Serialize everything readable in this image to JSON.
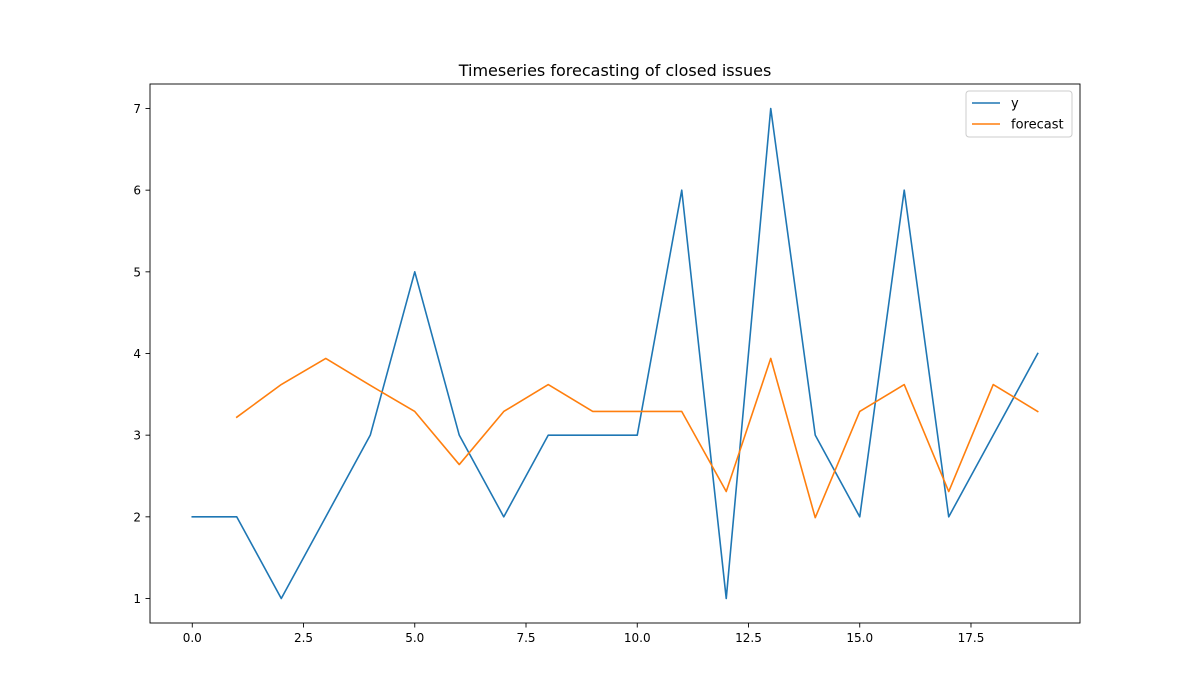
{
  "chart_data": {
    "type": "line",
    "title": "Timeseries forecasting of closed issues",
    "xlabel": "",
    "ylabel": "",
    "xlim": [
      -0.95,
      19.95
    ],
    "ylim": [
      0.7,
      7.3
    ],
    "xticks": [
      0.0,
      2.5,
      5.0,
      7.5,
      10.0,
      12.5,
      15.0,
      17.5
    ],
    "xtick_labels": [
      "0.0",
      "2.5",
      "5.0",
      "7.5",
      "10.0",
      "12.5",
      "15.0",
      "17.5"
    ],
    "yticks": [
      1,
      2,
      3,
      4,
      5,
      6,
      7
    ],
    "ytick_labels": [
      "1",
      "2",
      "3",
      "4",
      "5",
      "6",
      "7"
    ],
    "grid": false,
    "legend_position": "top-right",
    "series": [
      {
        "name": "y",
        "color": "#1f77b4",
        "x": [
          0,
          1,
          2,
          3,
          4,
          5,
          6,
          7,
          8,
          9,
          10,
          11,
          12,
          13,
          14,
          15,
          16,
          17,
          18,
          19
        ],
        "values": [
          2,
          2,
          1,
          2,
          3,
          5,
          3,
          2,
          3,
          3,
          3,
          6,
          1,
          7,
          3,
          2,
          6,
          2,
          3,
          4
        ]
      },
      {
        "name": "forecast",
        "color": "#ff7f0e",
        "x": [
          1,
          2,
          3,
          4,
          5,
          6,
          7,
          8,
          9,
          10,
          11,
          12,
          13,
          14,
          15,
          16,
          17,
          18,
          19
        ],
        "values": [
          3.22,
          3.62,
          3.94,
          3.61,
          3.29,
          2.64,
          3.29,
          3.62,
          3.29,
          3.29,
          3.29,
          2.31,
          3.94,
          1.99,
          3.29,
          3.62,
          2.31,
          3.62,
          3.29
        ]
      }
    ]
  }
}
